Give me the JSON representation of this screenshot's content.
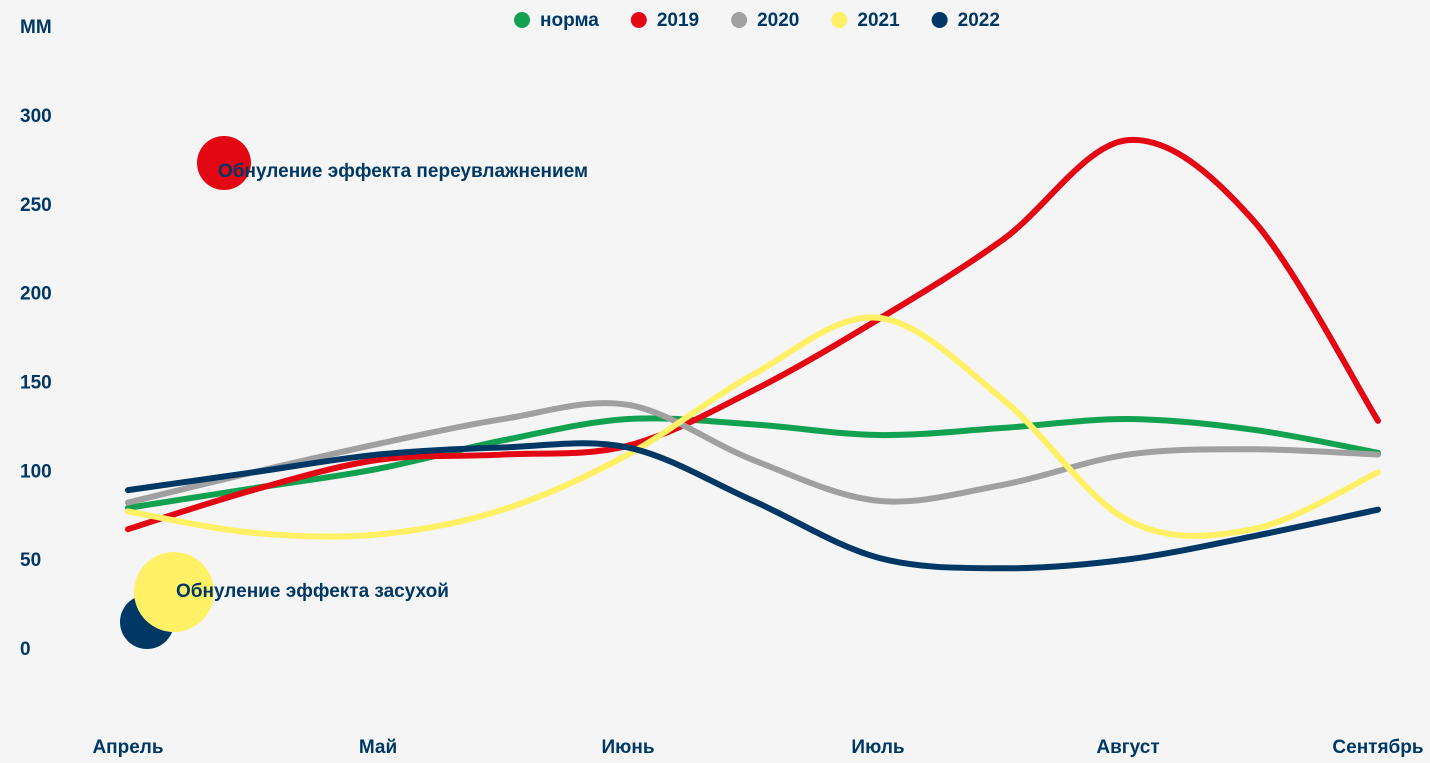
{
  "chart_data": {
    "type": "line",
    "y_label": "ММ",
    "categories": [
      "Апрель",
      null,
      "Май",
      null,
      "Июнь",
      null,
      "Июль",
      null,
      "Август",
      null,
      "Сентябрь"
    ],
    "series": [
      {
        "name": "норма",
        "color": "#12a150",
        "values": [
          80,
          91,
          102,
          118,
          130,
          127,
          121,
          125,
          130,
          124,
          111
        ]
      },
      {
        "name": "2019",
        "color": "#e30613",
        "values": [
          68,
          90,
          107,
          110,
          115,
          146,
          186,
          231,
          287,
          242,
          129
        ]
      },
      {
        "name": "2020",
        "color": "#a0a0a0",
        "values": [
          83,
          100,
          116,
          130,
          138,
          107,
          84,
          93,
          110,
          113,
          110
        ]
      },
      {
        "name": "2021",
        "color": "#fff066",
        "values": [
          78,
          66,
          65,
          79,
          110,
          155,
          187,
          141,
          73,
          68,
          100
        ]
      },
      {
        "name": "2022",
        "color": "#003865",
        "values": [
          90,
          100,
          110,
          114,
          114,
          84,
          52,
          46,
          51,
          64,
          79
        ]
      }
    ],
    "ylim": [
      0,
      300
    ],
    "yticks": [
      0,
      50,
      100,
      150,
      200,
      250,
      300
    ],
    "grid": false,
    "legend": "top",
    "annotations": [
      "Обнуление эффекта переувлажнением",
      "Обнуление эффекта засухой"
    ]
  }
}
